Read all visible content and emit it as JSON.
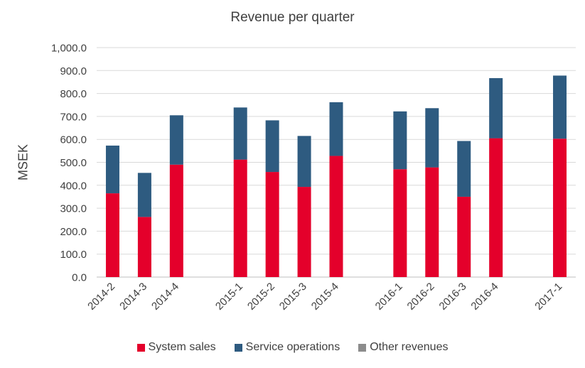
{
  "chart_data": {
    "type": "bar",
    "stacked": true,
    "title": "Revenue per quarter",
    "xlabel": "",
    "ylabel": "MSEK",
    "ylim": [
      0,
      1000
    ],
    "yticks": [
      "0.0",
      "100.0",
      "200.0",
      "300.0",
      "400.0",
      "500.0",
      "600.0",
      "700.0",
      "800.0",
      "900.0",
      "1,000.0"
    ],
    "grid": true,
    "legend_position": "bottom",
    "slots": [
      "2014-2",
      "2014-3",
      "2014-4",
      "",
      "2015-1",
      "2015-2",
      "2015-3",
      "2015-4",
      "",
      "2016-1",
      "2016-2",
      "2016-3",
      "2016-4",
      "",
      "2017-1"
    ],
    "categories": [
      "2014-2",
      "2014-3",
      "2014-4",
      "2015-1",
      "2015-2",
      "2015-3",
      "2015-4",
      "2016-1",
      "2016-2",
      "2016-3",
      "2016-4",
      "2017-1"
    ],
    "series": [
      {
        "name": "System sales",
        "color": "#e4002b",
        "values": [
          365,
          262,
          490,
          512,
          458,
          393,
          528,
          470,
          478,
          350,
          605,
          603
        ]
      },
      {
        "name": "Service operations",
        "color": "#2e5b80",
        "values": [
          208,
          192,
          215,
          227,
          225,
          222,
          234,
          252,
          258,
          243,
          262,
          275
        ]
      },
      {
        "name": "Other revenues",
        "color": "#8c8c8c",
        "values": [
          0,
          0,
          0,
          0,
          0,
          0,
          0,
          0,
          0,
          0,
          0,
          0
        ]
      }
    ]
  }
}
